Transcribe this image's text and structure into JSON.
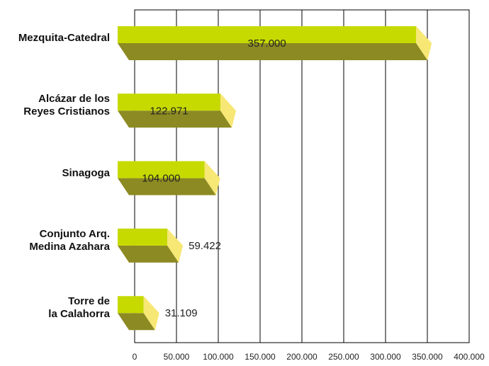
{
  "chart_data": {
    "type": "bar3d_horizontal",
    "categories": [
      "Mezquita-Catedral",
      "Alcázar de los\nReyes Cristianos",
      "Sinagoga",
      "Conjunto Arq.\nMedina Azahara",
      "Torre de\nla Calahorra"
    ],
    "values": [
      357000,
      122971,
      104000,
      59422,
      31109
    ],
    "value_labels": [
      "357.000",
      "122.971",
      "104.000",
      "59.422",
      "31.109"
    ],
    "colors": {
      "top": "#c6da00",
      "front": "#8c8a22",
      "cap": "#f7e774"
    },
    "xlim": [
      0,
      400000
    ],
    "xticks": [
      0,
      {
        "value": 50000,
        "label": "50.000"
      },
      {
        "value": 100000,
        "label": "100.000"
      },
      {
        "value": 150000,
        "label": "150.000"
      },
      {
        "value": 200000,
        "label": "200.000"
      },
      {
        "value": 250000,
        "label": "250.000"
      },
      {
        "value": 300000,
        "label": "300.000"
      },
      {
        "value": 350000,
        "label": "350.000"
      },
      {
        "value": 400000,
        "label": "400.000"
      }
    ],
    "grid": true
  }
}
